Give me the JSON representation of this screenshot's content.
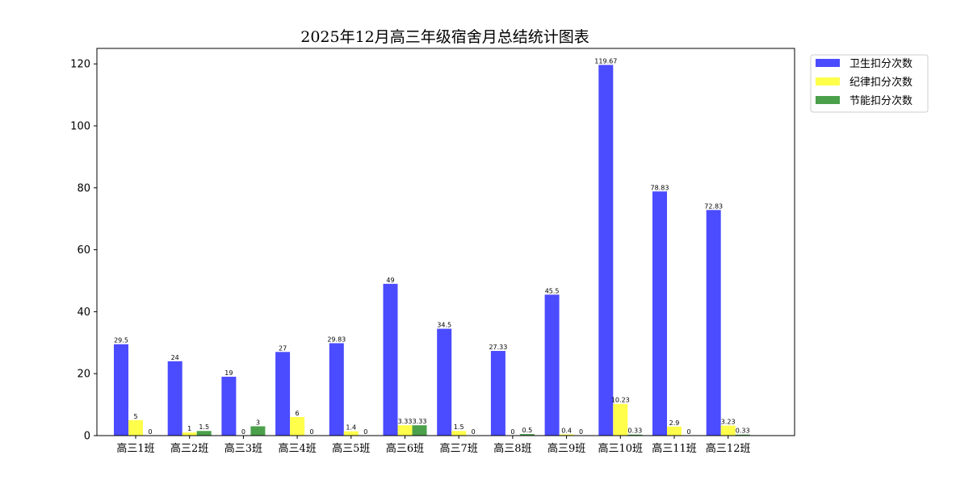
{
  "chart_data": {
    "type": "bar",
    "title": "2025年12月高三年级宿舍月总结统计图表",
    "xlabel": "",
    "ylabel": "",
    "ylim": [
      0,
      125
    ],
    "yticks": [
      "0",
      "20",
      "40",
      "60",
      "80",
      "100",
      "120"
    ],
    "legend_position": "outside-top-right",
    "grid": false,
    "categories": [
      "高三1班",
      "高三2班",
      "高三3班",
      "高三4班",
      "高三5班",
      "高三6班",
      "高三7班",
      "高三8班",
      "高三9班",
      "高三10班",
      "高三11班",
      "高三12班"
    ],
    "series": [
      {
        "name": "卫生扣分次数",
        "color": "#4b4bff",
        "values": [
          29.5,
          24,
          19,
          27,
          29.83,
          49,
          34.5,
          27.33,
          45.5,
          119.67,
          78.83,
          72.83
        ],
        "labels": [
          "29.5",
          "24",
          "19",
          "27",
          "29.83",
          "49",
          "34.5",
          "27.33",
          "45.5",
          "119.67",
          "78.83",
          "72.83"
        ]
      },
      {
        "name": "纪律扣分次数",
        "color": "#ffff4b",
        "values": [
          5,
          1,
          0,
          6,
          1.4,
          3.33,
          1.5,
          0,
          0.4,
          10.23,
          2.9,
          3.23
        ],
        "labels": [
          "5",
          "1",
          "0",
          "6",
          "1.4",
          "3.33",
          "1.5",
          "0",
          "0.4",
          "10.23",
          "2.9",
          "3.23"
        ]
      },
      {
        "name": "节能扣分次数",
        "color": "#4ba04b",
        "values": [
          0,
          1.5,
          3,
          0,
          0,
          3.33,
          0,
          0.5,
          0,
          0.33,
          0,
          0.33
        ],
        "labels": [
          "0",
          "1.5",
          "3",
          "0",
          "0",
          "3.33",
          "0",
          "0.5",
          "0",
          "0.33",
          "0",
          "0.33"
        ]
      }
    ]
  }
}
